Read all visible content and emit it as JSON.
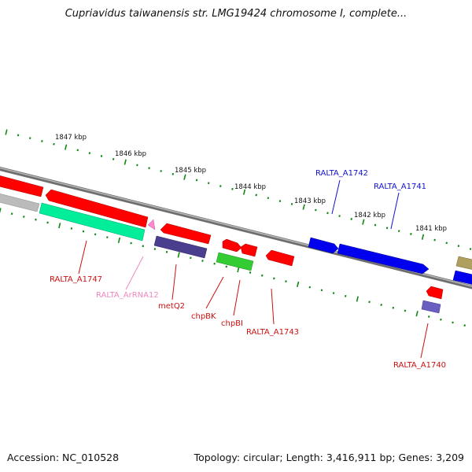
{
  "title": "Cupriavidus taiwanensis str. LMG19424 chromosome I, complete...",
  "accession_label": "Accession: NC_010528",
  "stats_label": "Topology: circular; Length: 3,416,911 bp; Genes: 3,209",
  "ruler_labels": [
    "1847 kbp",
    "1846 kbp",
    "1845 kbp",
    "1844 kbp",
    "1843 kbp",
    "1842 kbp",
    "1841 kbp"
  ],
  "gene_labels": [
    {
      "name": "RALTA_A1742",
      "color": "#1111cc"
    },
    {
      "name": "RALTA_A1741",
      "color": "#1111cc"
    },
    {
      "name": "RALTA_A1747",
      "color": "#cc1111"
    },
    {
      "name": "RALTA_ArRNA12",
      "color": "#ee88c0"
    },
    {
      "name": "metQ2",
      "color": "#cc1111"
    },
    {
      "name": "chpBK",
      "color": "#cc1111"
    },
    {
      "name": "chpBI",
      "color": "#cc1111"
    },
    {
      "name": "RALTA_A1743",
      "color": "#cc1111"
    },
    {
      "name": "RALTA_A1740",
      "color": "#cc1111"
    }
  ],
  "colors": {
    "forward_gene": "#ff0000",
    "reverse_gene_blue": "#0000ee",
    "rrna": "#00ee99",
    "trna": "#ff88cc",
    "pseudo": "#4a3f8f",
    "green_gene": "#33cc33",
    "olive_gene": "#b0a060",
    "grey_gene": "#bbbbbb",
    "ruler_tick": "#118811",
    "backbone": "#888888"
  }
}
